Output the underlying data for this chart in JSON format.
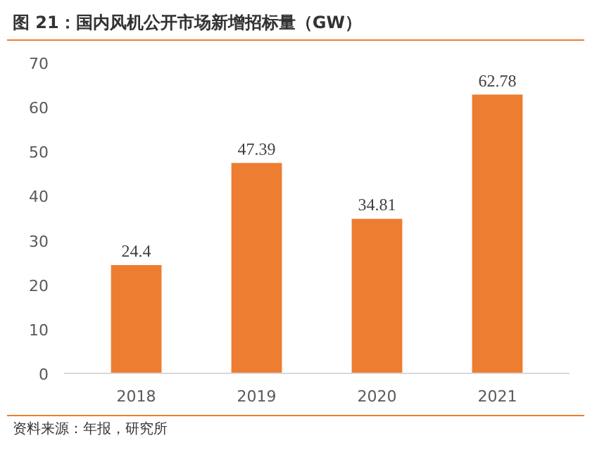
{
  "chart_data": {
    "type": "bar",
    "title": "图 21：国内风机公开市场新增招标量（GW）",
    "categories": [
      "2018",
      "2019",
      "2020",
      "2021"
    ],
    "values": [
      24.4,
      47.39,
      34.81,
      62.78
    ],
    "color": "#ed7d31",
    "ylim": [
      0,
      70
    ],
    "yticks": [
      0,
      10,
      20,
      30,
      40,
      50,
      60,
      70
    ],
    "grid": false,
    "data_labels": true,
    "annotations": [
      "资料来源：年报，研究所"
    ]
  }
}
